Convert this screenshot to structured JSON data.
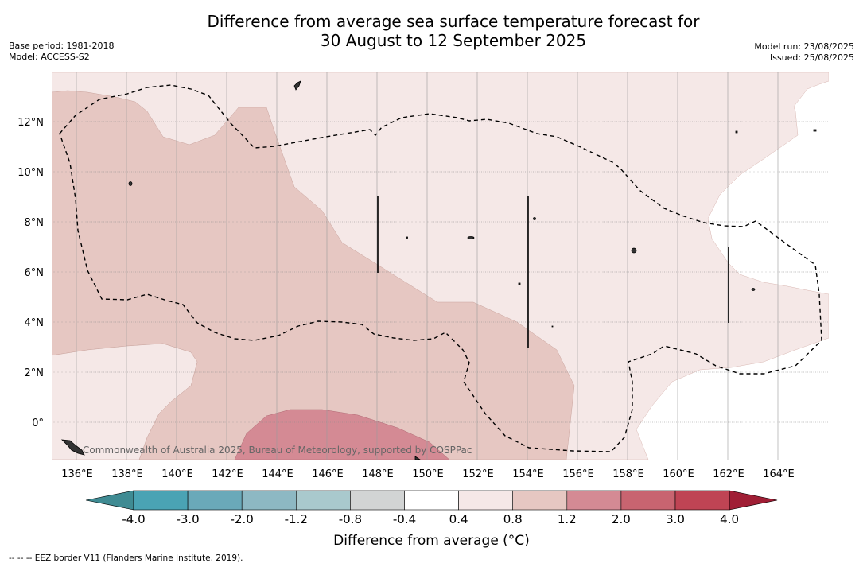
{
  "title": {
    "line1": "Difference from average sea surface temperature forecast for",
    "line2": "30 August to 12 September 2025"
  },
  "meta_left": {
    "base_period": "Base period: 1981-2018",
    "model": "Model: ACCESS-S2"
  },
  "meta_right": {
    "model_run": "Model run: 23/08/2025",
    "issued": "Issued: 25/08/2025"
  },
  "map": {
    "lat_labels": [
      "12°N",
      "10°N",
      "8°N",
      "6°N",
      "4°N",
      "2°N",
      "0°"
    ],
    "lon_labels": [
      "136°E",
      "138°E",
      "140°E",
      "142°E",
      "144°E",
      "146°E",
      "148°E",
      "150°E",
      "152°E",
      "154°E",
      "156°E",
      "158°E",
      "160°E",
      "162°E",
      "164°E"
    ],
    "copyright": "Commonwealth of Australia 2025, Bureau of Meteorology, supported by COSPPac",
    "colors": {
      "very_light_warm": "#f5e8e7",
      "light_warm": "#e6c7c2",
      "warm": "#d48a94",
      "border": "#000000"
    }
  },
  "colorbar": {
    "title": "Difference from average (°C)",
    "tick_labels": [
      "-4.0",
      "-3.0",
      "-2.0",
      "-1.2",
      "-0.8",
      "-0.4",
      "0.4",
      "0.8",
      "1.2",
      "2.0",
      "3.0",
      "4.0"
    ],
    "colors": [
      "#3f8b93",
      "#4aa3b4",
      "#6aa9b9",
      "#8db8c3",
      "#a9c9cd",
      "#d2d4d4",
      "#ffffff",
      "#f5e8e7",
      "#e6c7c2",
      "#d48a94",
      "#c86470",
      "#bf4454",
      "#a01e35"
    ]
  },
  "footnote": "--  --  -- EEZ border V11 (Flanders Marine Institute, 2019)."
}
